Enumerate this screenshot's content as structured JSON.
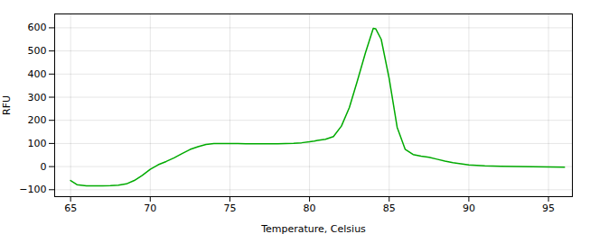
{
  "chart_data": {
    "type": "line",
    "xlabel": "Temperature, Celsius",
    "ylabel": "RFU",
    "x": [
      65.0,
      65.4,
      66.0,
      66.5,
      67.0,
      67.5,
      68.0,
      68.5,
      69.0,
      69.5,
      70.0,
      70.5,
      71.0,
      71.5,
      72.0,
      72.5,
      73.0,
      73.5,
      74.0,
      74.5,
      75.0,
      75.5,
      76.0,
      76.5,
      77.0,
      77.5,
      78.0,
      78.5,
      79.0,
      79.5,
      80.0,
      80.3,
      80.5,
      81.0,
      81.5,
      82.0,
      82.5,
      83.0,
      83.5,
      84.0,
      84.15,
      84.5,
      85.0,
      85.5,
      86.0,
      86.5,
      87.0,
      87.5,
      88.0,
      88.5,
      89.0,
      89.5,
      90.0,
      91.0,
      92.0,
      93.0,
      94.0,
      95.0,
      96.0
    ],
    "values": [
      -60,
      -78,
      -83,
      -83,
      -83,
      -82,
      -80,
      -75,
      -60,
      -38,
      -12,
      8,
      22,
      38,
      56,
      74,
      86,
      96,
      100,
      100,
      100,
      100,
      99,
      99,
      99,
      99,
      99,
      100,
      101,
      103,
      107,
      110,
      113,
      118,
      130,
      175,
      255,
      370,
      490,
      598,
      596,
      550,
      380,
      170,
      75,
      52,
      45,
      40,
      32,
      24,
      17,
      12,
      7,
      3,
      1,
      0,
      -1,
      -2,
      -3
    ],
    "color": "#00aa00",
    "xlim": [
      64.0,
      96.5
    ],
    "ylim": [
      -130,
      660
    ],
    "xticks": [
      65,
      70,
      75,
      80,
      85,
      90,
      95
    ],
    "yticks": [
      -100,
      0,
      100,
      200,
      300,
      400,
      500,
      600
    ],
    "grid": true
  }
}
